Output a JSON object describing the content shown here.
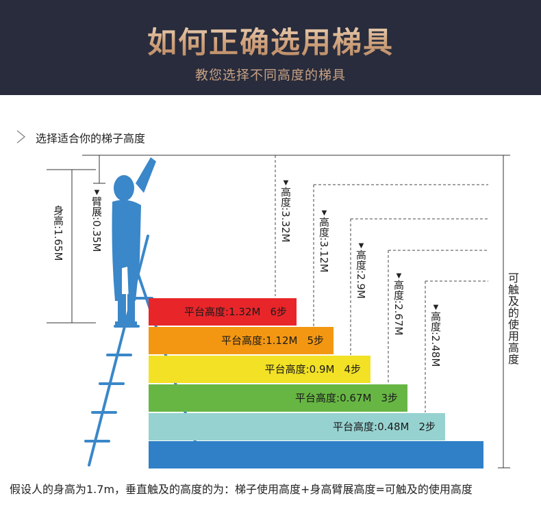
{
  "header": {
    "title": "如何正确选用梯具",
    "subtitle": "教您选择不同高度的梯具"
  },
  "section": {
    "title": "选择适合你的梯子高度"
  },
  "labels": {
    "body_height": "身高:1.65M",
    "arm_span": "臂展:0.35M",
    "reach_height": "可触及的使用高度"
  },
  "heights": [
    {
      "label": "高度:3.32M"
    },
    {
      "label": "高度:3.12M"
    },
    {
      "label": "高度:2.9M"
    },
    {
      "label": "高度:2.67M"
    },
    {
      "label": "高度:2.48M"
    }
  ],
  "platforms": [
    {
      "height": "平台高度:1.32M",
      "steps": "6步",
      "color": "#e8262a"
    },
    {
      "height": "平台高度:1.12M",
      "steps": "5步",
      "color": "#f39712"
    },
    {
      "height": "平台高度:0.9M",
      "steps": "4步",
      "color": "#f2e125"
    },
    {
      "height": "平台高度:0.67M",
      "steps": "3步",
      "color": "#67b644"
    },
    {
      "height": "平台高度:0.48M",
      "steps": "2步",
      "color": "#96d2d0"
    }
  ],
  "base_color": "#2f80c6",
  "figure_color": "#3a87c9",
  "footer": "假设人的身高为1.7m，垂直触及的高度的为：梯子使用高度+身高臂展高度=可触及的使用高度"
}
